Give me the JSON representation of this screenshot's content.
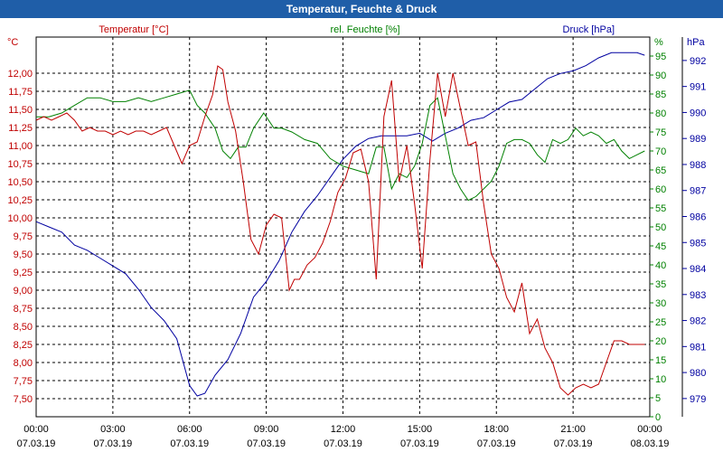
{
  "window": {
    "title": "Temperatur, Feuchte & Druck"
  },
  "chart_data": {
    "type": "line",
    "title": "Temperatur, Feuchte & Druck",
    "x_ticks": [
      {
        "time": "00:00",
        "date": "07.03.19"
      },
      {
        "time": "03:00",
        "date": "07.03.19"
      },
      {
        "time": "06:00",
        "date": "07.03.19"
      },
      {
        "time": "09:00",
        "date": "07.03.19"
      },
      {
        "time": "12:00",
        "date": "07.03.19"
      },
      {
        "time": "15:00",
        "date": "07.03.19"
      },
      {
        "time": "18:00",
        "date": "07.03.19"
      },
      {
        "time": "21:00",
        "date": "07.03.19"
      },
      {
        "time": "00:00",
        "date": "08.03.19"
      }
    ],
    "xlim": [
      0,
      24
    ],
    "axes": {
      "temperature": {
        "unit": "°C",
        "label": "Temperatur [°C]",
        "color": "#c00000",
        "ylim": [
          7.25,
          12.5
        ],
        "ticks": [
          "7,50",
          "7,75",
          "8,00",
          "8,25",
          "8,50",
          "8,75",
          "9,00",
          "9,25",
          "9,50",
          "9,75",
          "10,00",
          "10,25",
          "10,50",
          "10,75",
          "11,00",
          "11,25",
          "11,50",
          "11,75",
          "12,00"
        ]
      },
      "humidity": {
        "unit": "%",
        "label": "rel. Feuchte [%]",
        "color": "#008000",
        "ylim": [
          0,
          100
        ],
        "ticks": [
          "0",
          "5",
          "10",
          "15",
          "20",
          "25",
          "30",
          "35",
          "40",
          "45",
          "50",
          "55",
          "60",
          "65",
          "70",
          "75",
          "80",
          "85",
          "90",
          "95"
        ]
      },
      "pressure": {
        "unit": "hPa",
        "label": "Druck [hPa]",
        "color": "#0000a0",
        "ylim": [
          978.3,
          992.9
        ],
        "ticks": [
          "979",
          "980",
          "981",
          "982",
          "983",
          "984",
          "985",
          "986",
          "987",
          "988",
          "989",
          "990",
          "991",
          "992"
        ]
      }
    },
    "series": [
      {
        "name": "Temperatur",
        "axis": "temperature",
        "color": "#c00000",
        "x": [
          0,
          0.3,
          0.6,
          0.9,
          1.2,
          1.5,
          1.8,
          2.1,
          2.4,
          2.7,
          3.0,
          3.3,
          3.6,
          3.9,
          4.2,
          4.5,
          4.8,
          5.1,
          5.4,
          5.7,
          6.0,
          6.3,
          6.6,
          6.9,
          7.1,
          7.3,
          7.5,
          7.8,
          8.1,
          8.4,
          8.7,
          9.0,
          9.3,
          9.6,
          9.9,
          10.1,
          10.3,
          10.6,
          10.9,
          11.2,
          11.5,
          11.8,
          12.1,
          12.4,
          12.7,
          13.0,
          13.3,
          13.6,
          13.9,
          14.2,
          14.5,
          14.8,
          15.1,
          15.4,
          15.7,
          16.0,
          16.3,
          16.6,
          16.9,
          17.2,
          17.5,
          17.8,
          18.1,
          18.4,
          18.7,
          19.0,
          19.3,
          19.6,
          19.9,
          20.2,
          20.5,
          20.8,
          21.1,
          21.4,
          21.7,
          22.0,
          22.3,
          22.6,
          22.9,
          23.2,
          23.5,
          23.8
        ],
        "y": [
          11.35,
          11.4,
          11.35,
          11.4,
          11.45,
          11.35,
          11.2,
          11.25,
          11.2,
          11.2,
          11.15,
          11.2,
          11.15,
          11.2,
          11.2,
          11.15,
          11.2,
          11.25,
          11.0,
          10.75,
          11.0,
          11.05,
          11.4,
          11.7,
          12.1,
          12.05,
          11.6,
          11.2,
          10.5,
          9.7,
          9.5,
          9.9,
          10.05,
          10.0,
          9.0,
          9.15,
          9.15,
          9.35,
          9.45,
          9.65,
          9.95,
          10.35,
          10.55,
          10.9,
          10.95,
          10.5,
          9.15,
          11.4,
          11.9,
          10.5,
          11.0,
          10.2,
          9.3,
          10.8,
          12.0,
          11.4,
          12.0,
          11.5,
          11.0,
          11.05,
          10.2,
          9.5,
          9.3,
          8.9,
          8.7,
          9.1,
          8.4,
          8.6,
          8.2,
          8.0,
          7.65,
          7.55,
          7.65,
          7.7,
          7.65,
          7.7,
          8.0,
          8.3,
          8.3,
          8.25,
          8.25,
          8.25
        ]
      },
      {
        "name": "rel. Feuchte",
        "axis": "humidity",
        "color": "#008000",
        "x": [
          0,
          0.5,
          1.0,
          1.5,
          2.0,
          2.5,
          3.0,
          3.5,
          4.0,
          4.5,
          5.0,
          5.5,
          6.0,
          6.3,
          6.6,
          7.0,
          7.3,
          7.6,
          7.9,
          8.2,
          8.5,
          8.9,
          9.3,
          9.6,
          10.0,
          10.5,
          11.0,
          11.5,
          12.0,
          12.5,
          13.0,
          13.3,
          13.6,
          13.9,
          14.2,
          14.5,
          14.8,
          15.1,
          15.4,
          15.7,
          16.0,
          16.3,
          16.6,
          16.9,
          17.2,
          17.5,
          17.8,
          18.1,
          18.4,
          18.7,
          19.0,
          19.3,
          19.6,
          19.9,
          20.2,
          20.5,
          20.8,
          21.1,
          21.4,
          21.7,
          22.0,
          22.3,
          22.6,
          22.9,
          23.2,
          23.5,
          23.8
        ],
        "y": [
          79,
          79,
          80,
          82,
          84,
          84,
          83,
          83,
          84,
          83,
          84,
          85,
          86,
          82,
          80,
          76,
          70,
          68,
          71,
          71,
          76,
          80,
          76,
          76,
          75,
          73,
          72,
          68,
          66,
          65,
          64,
          71,
          71,
          60,
          64,
          63,
          66,
          72,
          82,
          84,
          74,
          64,
          60,
          57,
          58,
          60,
          62,
          66,
          72,
          73,
          73,
          72,
          69,
          67,
          73,
          72,
          73,
          76,
          74,
          75,
          74,
          72,
          73,
          70,
          68,
          69,
          70
        ]
      },
      {
        "name": "Druck",
        "axis": "pressure",
        "color": "#0000a0",
        "x": [
          0,
          0.5,
          1.0,
          1.5,
          2.0,
          2.5,
          3.0,
          3.5,
          4.0,
          4.5,
          5.0,
          5.5,
          6.0,
          6.3,
          6.6,
          7.0,
          7.5,
          8.0,
          8.5,
          9.0,
          9.5,
          10.0,
          10.5,
          11.0,
          11.5,
          12.0,
          12.5,
          13.0,
          13.5,
          14.0,
          14.5,
          15.0,
          15.5,
          16.0,
          16.5,
          17.0,
          17.5,
          18.0,
          18.5,
          19.0,
          19.5,
          20.0,
          20.5,
          21.0,
          21.5,
          22.0,
          22.5,
          23.0,
          23.5,
          23.8
        ],
        "y": [
          985.8,
          985.6,
          985.4,
          984.9,
          984.7,
          984.4,
          984.1,
          983.8,
          983.2,
          982.5,
          982.0,
          981.3,
          979.5,
          979.1,
          979.2,
          979.9,
          980.5,
          981.5,
          982.9,
          983.5,
          984.3,
          985.4,
          986.2,
          986.8,
          987.5,
          988.2,
          988.7,
          989.0,
          989.1,
          989.1,
          989.1,
          989.2,
          988.9,
          989.2,
          989.4,
          989.7,
          989.8,
          990.1,
          990.4,
          990.5,
          990.9,
          991.3,
          991.5,
          991.6,
          991.8,
          992.1,
          992.3,
          992.3,
          992.3,
          992.2
        ]
      }
    ]
  }
}
